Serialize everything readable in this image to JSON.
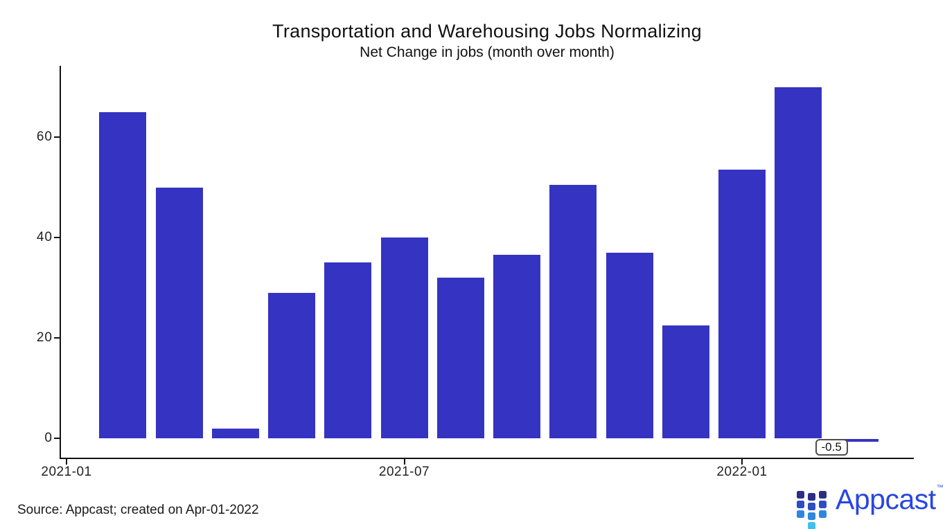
{
  "header": {
    "title": "Transportation and Warehousing Jobs Normalizing",
    "subtitle": "Net Change in jobs (month over month)"
  },
  "chart_data": {
    "type": "bar",
    "categories": [
      "2021-02",
      "2021-03",
      "2021-04",
      "2021-05",
      "2021-06",
      "2021-07",
      "2021-08",
      "2021-09",
      "2021-10",
      "2021-11",
      "2021-12",
      "2022-01",
      "2022-02",
      "2022-03"
    ],
    "values": [
      65,
      50,
      2,
      29,
      35,
      40,
      32,
      36.5,
      50.5,
      37,
      22.5,
      53.5,
      70,
      -0.5
    ],
    "title": "Transportation and Warehousing Jobs Normalizing",
    "subtitle": "Net Change in jobs (month over month)",
    "xlabel": "",
    "ylabel": "",
    "ylim": [
      -4,
      74
    ],
    "yticks": [
      0,
      20,
      40,
      60
    ],
    "xtick_labels": [
      "2021-01",
      "2021-07",
      "2022-01"
    ],
    "grid": false,
    "legend": false,
    "bar_color": "#3533c2",
    "annotation": {
      "text": "-0.5",
      "target": "2022-03"
    }
  },
  "footer": {
    "source": "Source: Appcast; created on Apr-01-2022",
    "logo": {
      "wordmark": "Appcast",
      "trademark": "™",
      "square_colors": [
        "#2d2e83",
        "#2b4ec4",
        "#2e86e0",
        "#41c0f0"
      ],
      "wordmark_color": "#2946e1"
    }
  }
}
